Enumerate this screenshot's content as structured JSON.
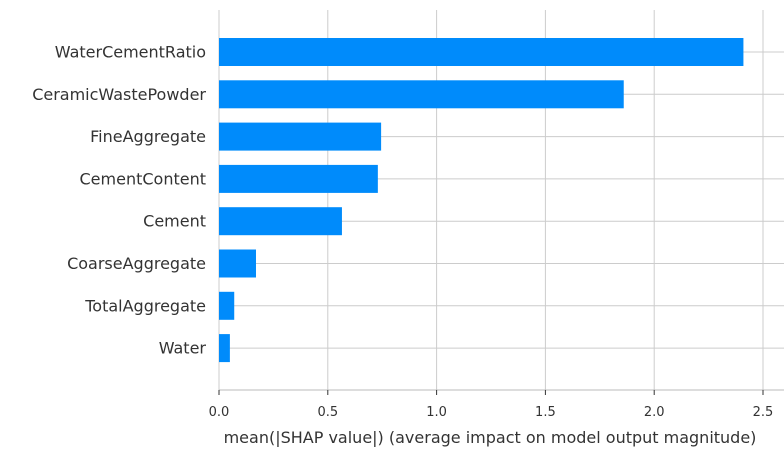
{
  "chart_data": {
    "type": "bar",
    "orientation": "horizontal",
    "categories": [
      "WaterCementRatio",
      "CeramicWastePowder",
      "FineAggregate",
      "CementContent",
      "Cement",
      "CoarseAggregate",
      "TotalAggregate",
      "Water"
    ],
    "values": [
      2.41,
      1.86,
      0.745,
      0.73,
      0.565,
      0.17,
      0.07,
      0.05
    ],
    "xlabel": "mean(|SHAP value|) (average impact on model output magnitude)",
    "ylabel": "",
    "xlim": [
      0,
      2.52
    ],
    "xticks": [
      0.0,
      0.5,
      1.0,
      1.5,
      2.0,
      2.5
    ],
    "xtick_labels": [
      "0.0",
      "0.5",
      "1.0",
      "1.5",
      "2.0",
      "2.5"
    ],
    "grid": true,
    "bar_color": "#008bfb",
    "grid_color": "#cccccc"
  }
}
